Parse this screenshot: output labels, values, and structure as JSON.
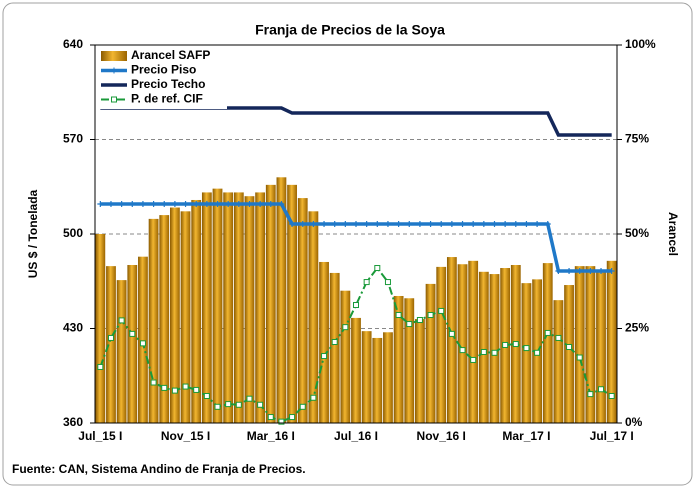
{
  "chart_data": {
    "type": "bar",
    "title": "Franja de Precios de la Soya",
    "ylabel": "US $ / Tonelada",
    "y2label": "Arancel",
    "source": "Fuente: CAN, Sistema Andino de Franja de Precios.",
    "categories": [
      "Jul_15 I",
      null,
      null,
      null,
      null,
      null,
      null,
      null,
      "Nov_15 I",
      null,
      null,
      null,
      null,
      null,
      null,
      null,
      "Mar_16 I",
      null,
      null,
      null,
      null,
      null,
      null,
      null,
      "Jul_16 I",
      null,
      null,
      null,
      null,
      null,
      null,
      null,
      "Nov_16 I",
      null,
      null,
      null,
      null,
      null,
      null,
      null,
      "Mar_17 I",
      null,
      null,
      null,
      null,
      null,
      null,
      null,
      "Jul_17 I"
    ],
    "ylim": [
      360,
      640
    ],
    "yticks": [
      360,
      430,
      500,
      570,
      640
    ],
    "y2lim": [
      0,
      100
    ],
    "y2ticks": [
      {
        "value": 0,
        "label": "0%"
      },
      {
        "value": 25,
        "label": "25%"
      },
      {
        "value": 50,
        "label": "50%"
      },
      {
        "value": 75,
        "label": "75%"
      },
      {
        "value": 100,
        "label": "100%"
      }
    ],
    "grid": true,
    "legend": "top-left",
    "series": [
      {
        "name": "Arancel SAFP",
        "type": "bar",
        "axis": "y2",
        "color": "#d4920c",
        "values": [
          50,
          41.5,
          37.8,
          41.8,
          44,
          54,
          55,
          57,
          56,
          59,
          61,
          62,
          61,
          61,
          60,
          61,
          63,
          65,
          63,
          59.5,
          56,
          42.6,
          39.7,
          35,
          27.8,
          24.3,
          22.5,
          24,
          33.6,
          33,
          27.5,
          36.8,
          41.3,
          43.9,
          42,
          42.9,
          40,
          39.4,
          41,
          41.8,
          37,
          38,
          42.3,
          32.5,
          36.5,
          41.5,
          41.5,
          40,
          42.9
        ]
      },
      {
        "name": "Precio Piso",
        "type": "line",
        "color": "#1f78c8",
        "marker": "plus",
        "values": [
          522.2,
          522.2,
          522.2,
          522.2,
          522.2,
          522.2,
          522.2,
          522.2,
          522.2,
          522.2,
          522.2,
          522.2,
          522.2,
          522.2,
          522.2,
          522.2,
          522.2,
          522.2,
          507.4,
          507.4,
          507.4,
          507.4,
          507.4,
          507.4,
          507.4,
          507.4,
          507.4,
          507.4,
          507.4,
          507.4,
          507.4,
          507.4,
          507.4,
          507.4,
          507.4,
          507.4,
          507.4,
          507.4,
          507.4,
          507.4,
          507.4,
          507.4,
          507.4,
          472.6,
          472.6,
          472.6,
          472.6,
          472.6,
          472.6
        ]
      },
      {
        "name": "Precio Techo",
        "type": "line",
        "color": "#14275a",
        "values": [
          593.3,
          593.3,
          593.3,
          593.3,
          593.3,
          593.3,
          593.3,
          593.3,
          593.3,
          593.3,
          593.3,
          593.3,
          593.3,
          593.3,
          593.3,
          593.3,
          593.3,
          593.3,
          589.6,
          589.6,
          589.6,
          589.6,
          589.6,
          589.6,
          589.6,
          589.6,
          589.6,
          589.6,
          589.6,
          589.6,
          589.6,
          589.6,
          589.6,
          589.6,
          589.6,
          589.6,
          589.6,
          589.6,
          589.6,
          589.6,
          589.6,
          589.6,
          589.6,
          573.3,
          573.3,
          573.3,
          573.3,
          573.3,
          573.3
        ]
      },
      {
        "name": "P. de ref. CIF",
        "type": "line",
        "color": "#1a9a3a",
        "marker": "square",
        "dash": "dashdot",
        "values": [
          401.5,
          423,
          436,
          426,
          419,
          390,
          386,
          384,
          387,
          384.5,
          380,
          372,
          374,
          373.5,
          378,
          373.5,
          364.4,
          361,
          364.4,
          372,
          378.7,
          409.6,
          420,
          431,
          447.4,
          464.4,
          474.8,
          464.4,
          440,
          433.3,
          436.3,
          440,
          443,
          426,
          414,
          406.7,
          412.6,
          412,
          417.8,
          418.5,
          415.5,
          412,
          426.7,
          423,
          416.3,
          408.5,
          381.4,
          385,
          380
        ]
      }
    ]
  }
}
